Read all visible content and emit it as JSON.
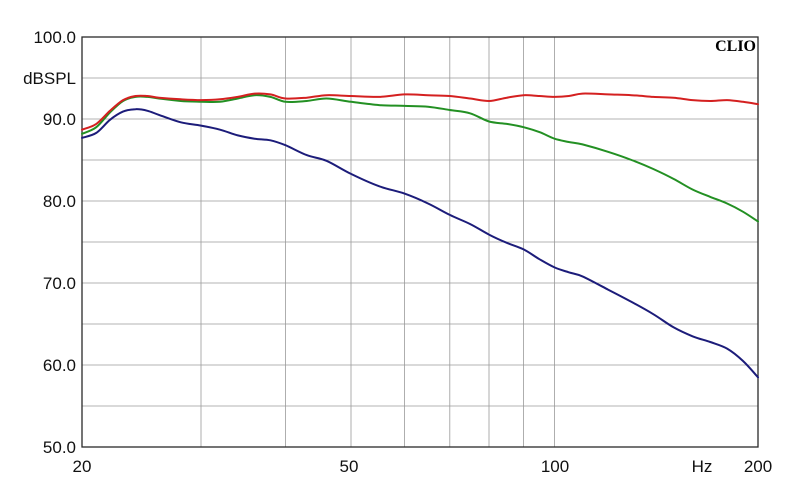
{
  "chart_data": {
    "type": "line",
    "x_scale": "log",
    "xlim": [
      20,
      200
    ],
    "ylim": [
      50,
      100
    ],
    "grid": true,
    "ylabel": "dBSPL",
    "xunit": "Hz",
    "brand": "CLIO",
    "yticks": [
      "100.0",
      "90.0",
      "80.0",
      "70.0",
      "60.0",
      "50.0"
    ],
    "xticks": [
      "20",
      "50",
      "100",
      "200"
    ],
    "x_gridlines": [
      30,
      40,
      50,
      60,
      70,
      80,
      90,
      100
    ],
    "y_gridlines": [
      55,
      60,
      65,
      70,
      75,
      80,
      85,
      90,
      95
    ],
    "x": [
      20,
      21,
      22,
      23,
      24,
      25,
      26,
      28,
      30,
      32,
      34,
      36,
      38,
      40,
      43,
      46,
      50,
      55,
      60,
      65,
      70,
      75,
      80,
      85,
      90,
      95,
      100,
      105,
      110,
      120,
      130,
      140,
      150,
      160,
      170,
      180,
      190,
      200
    ],
    "series": [
      {
        "color": "#d42020",
        "values": [
          88.7,
          89.4,
          91.0,
          92.3,
          92.8,
          92.8,
          92.6,
          92.4,
          92.3,
          92.4,
          92.7,
          93.1,
          93.0,
          92.5,
          92.6,
          92.9,
          92.8,
          92.7,
          93.0,
          92.9,
          92.8,
          92.5,
          92.2,
          92.6,
          92.9,
          92.8,
          92.7,
          92.8,
          93.1,
          93.0,
          92.9,
          92.7,
          92.6,
          92.3,
          92.2,
          92.3,
          92.1,
          91.8
        ]
      },
      {
        "color": "#239023",
        "values": [
          88.2,
          89.0,
          90.8,
          92.2,
          92.7,
          92.7,
          92.5,
          92.2,
          92.1,
          92.1,
          92.5,
          92.9,
          92.7,
          92.1,
          92.2,
          92.5,
          92.1,
          91.7,
          91.6,
          91.5,
          91.1,
          90.7,
          89.7,
          89.4,
          89.0,
          88.4,
          87.6,
          87.2,
          86.9,
          86.0,
          85.0,
          83.9,
          82.7,
          81.4,
          80.5,
          79.7,
          78.7,
          77.5
        ]
      },
      {
        "color": "#1c1c7a",
        "values": [
          87.7,
          88.3,
          89.9,
          90.9,
          91.2,
          91.0,
          90.5,
          89.6,
          89.2,
          88.7,
          88.0,
          87.6,
          87.4,
          86.8,
          85.6,
          84.9,
          83.3,
          81.8,
          80.9,
          79.7,
          78.3,
          77.2,
          75.9,
          74.9,
          74.1,
          72.9,
          71.9,
          71.3,
          70.8,
          69.2,
          67.7,
          66.2,
          64.6,
          63.5,
          62.8,
          62.0,
          60.5,
          58.5
        ]
      }
    ]
  }
}
